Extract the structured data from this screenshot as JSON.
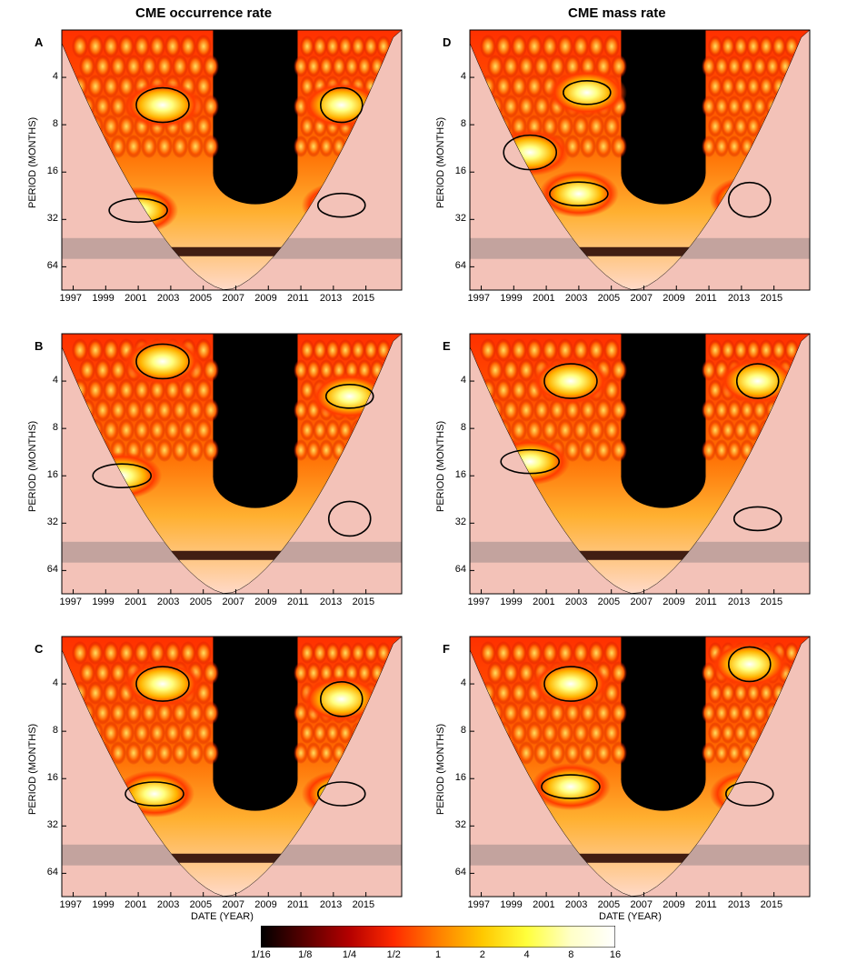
{
  "columns": [
    {
      "title": "CME occurrence rate"
    },
    {
      "title": "CME mass rate"
    }
  ],
  "chart_data": [
    {
      "type": "heatmap",
      "panel_label": "A",
      "ylabel": "PERIOD (MONTHS)",
      "xlabel": "",
      "x_ticks": [
        "1997",
        "1999",
        "2001",
        "2003",
        "2005",
        "2007",
        "2009",
        "2011",
        "2013",
        "2015"
      ],
      "y_ticks": [
        "4",
        "8",
        "16",
        "32",
        "64"
      ],
      "y_scale": "log2",
      "xlim": [
        1996.3,
        2017.2
      ],
      "ylim": [
        2,
        90
      ],
      "hot_spots": [
        {
          "x": 2001,
          "y": 28
        },
        {
          "x": 2002.5,
          "y": 6
        },
        {
          "x": 2013.5,
          "y": 26
        },
        {
          "x": 2013.5,
          "y": 6
        }
      ]
    },
    {
      "type": "heatmap",
      "panel_label": "B",
      "ylabel": "PERIOD (MONTHS)",
      "xlabel": "",
      "x_ticks": [
        "1997",
        "1999",
        "2001",
        "2003",
        "2005",
        "2007",
        "2009",
        "2011",
        "2013",
        "2015"
      ],
      "y_ticks": [
        "4",
        "8",
        "16",
        "32",
        "64"
      ],
      "y_scale": "log2",
      "xlim": [
        1996.3,
        2017.2
      ],
      "ylim": [
        2,
        90
      ],
      "hot_spots": [
        {
          "x": 2000,
          "y": 16
        },
        {
          "x": 2002.5,
          "y": 3
        },
        {
          "x": 2014,
          "y": 5
        },
        {
          "x": 2014,
          "y": 30
        }
      ]
    },
    {
      "type": "heatmap",
      "panel_label": "C",
      "ylabel": "PERIOD (MONTHS)",
      "xlabel": "DATE (YEAR)",
      "x_ticks": [
        "1997",
        "1999",
        "2001",
        "2003",
        "2005",
        "2007",
        "2009",
        "2011",
        "2013",
        "2015"
      ],
      "y_ticks": [
        "4",
        "8",
        "16",
        "32",
        "64"
      ],
      "y_scale": "log2",
      "xlim": [
        1996.3,
        2017.2
      ],
      "ylim": [
        2,
        90
      ],
      "hot_spots": [
        {
          "x": 2002,
          "y": 20
        },
        {
          "x": 2002.5,
          "y": 4
        },
        {
          "x": 2013.5,
          "y": 20
        },
        {
          "x": 2013.5,
          "y": 5
        }
      ]
    },
    {
      "type": "heatmap",
      "panel_label": "D",
      "ylabel": "PERIOD (MONTHS)",
      "xlabel": "",
      "x_ticks": [
        "1997",
        "1999",
        "2001",
        "2003",
        "2005",
        "2007",
        "2009",
        "2011",
        "2013",
        "2015"
      ],
      "y_ticks": [
        "4",
        "8",
        "16",
        "32",
        "64"
      ],
      "y_scale": "log2",
      "xlim": [
        1996.3,
        2017.2
      ],
      "ylim": [
        2,
        90
      ],
      "hot_spots": [
        {
          "x": 2003,
          "y": 22
        },
        {
          "x": 2000,
          "y": 12
        },
        {
          "x": 2003.5,
          "y": 5
        },
        {
          "x": 2013.5,
          "y": 24
        }
      ]
    },
    {
      "type": "heatmap",
      "panel_label": "E",
      "ylabel": "PERIOD (MONTHS)",
      "xlabel": "",
      "x_ticks": [
        "1997",
        "1999",
        "2001",
        "2003",
        "2005",
        "2007",
        "2009",
        "2011",
        "2013",
        "2015"
      ],
      "y_ticks": [
        "4",
        "8",
        "16",
        "32",
        "64"
      ],
      "y_scale": "log2",
      "xlim": [
        1996.3,
        2017.2
      ],
      "ylim": [
        2,
        90
      ],
      "hot_spots": [
        {
          "x": 2000,
          "y": 13
        },
        {
          "x": 2002.5,
          "y": 4
        },
        {
          "x": 2014,
          "y": 30
        },
        {
          "x": 2014,
          "y": 4
        }
      ]
    },
    {
      "type": "heatmap",
      "panel_label": "F",
      "ylabel": "PERIOD (MONTHS)",
      "xlabel": "DATE (YEAR)",
      "x_ticks": [
        "1997",
        "1999",
        "2001",
        "2003",
        "2005",
        "2007",
        "2009",
        "2011",
        "2013",
        "2015"
      ],
      "y_ticks": [
        "4",
        "8",
        "16",
        "32",
        "64"
      ],
      "y_scale": "log2",
      "xlim": [
        1996.3,
        2017.2
      ],
      "ylim": [
        2,
        90
      ],
      "hot_spots": [
        {
          "x": 2002.5,
          "y": 18
        },
        {
          "x": 2002.5,
          "y": 4
        },
        {
          "x": 2013.5,
          "y": 20
        },
        {
          "x": 2013.5,
          "y": 3
        }
      ]
    }
  ],
  "colorbar": {
    "labels": [
      "1/16",
      "1/8",
      "1/4",
      "1/2",
      "1",
      "2",
      "4",
      "8",
      "16"
    ],
    "colors": [
      "#000000",
      "#5a0000",
      "#b40000",
      "#ff2a00",
      "#ff7f00",
      "#ffc800",
      "#ffff3c",
      "#ffffc8",
      "#ffffff"
    ]
  }
}
